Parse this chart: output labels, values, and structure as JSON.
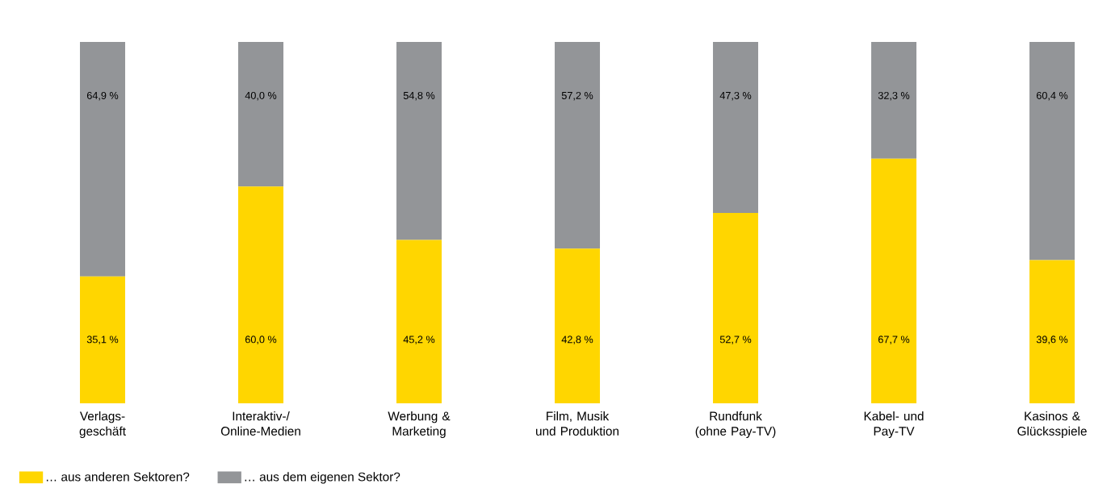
{
  "chart_data": {
    "type": "bar",
    "stacked": true,
    "categories": [
      "Verlags-geschäft",
      "Interaktiv-/ Online-Medien",
      "Werbung & Marketing",
      "Film, Musik und Produktion",
      "Rundfunk (ohne Pay-TV)",
      "Kabel- und Pay-TV",
      "Kasinos & Glücksspiele"
    ],
    "series": [
      {
        "name": "… aus anderen Sektoren?",
        "color": "#ffd600",
        "values": [
          35.1,
          60.0,
          45.2,
          42.8,
          52.7,
          67.7,
          39.6
        ],
        "value_labels": [
          "35,1 %",
          "60,0 %",
          "45,2 %",
          "42,8 %",
          "52,7 %",
          "67,7 %",
          "39,6 %"
        ]
      },
      {
        "name": "… aus dem eigenen Sektor?",
        "color": "#939598",
        "values": [
          64.9,
          40.0,
          54.8,
          57.2,
          47.3,
          32.3,
          60.4
        ],
        "value_labels": [
          "64,9 %",
          "40,0 %",
          "54,8 %",
          "57,2 %",
          "47,3 %",
          "32,3 %",
          "60,4 %"
        ]
      }
    ],
    "legend": "bottom left"
  }
}
